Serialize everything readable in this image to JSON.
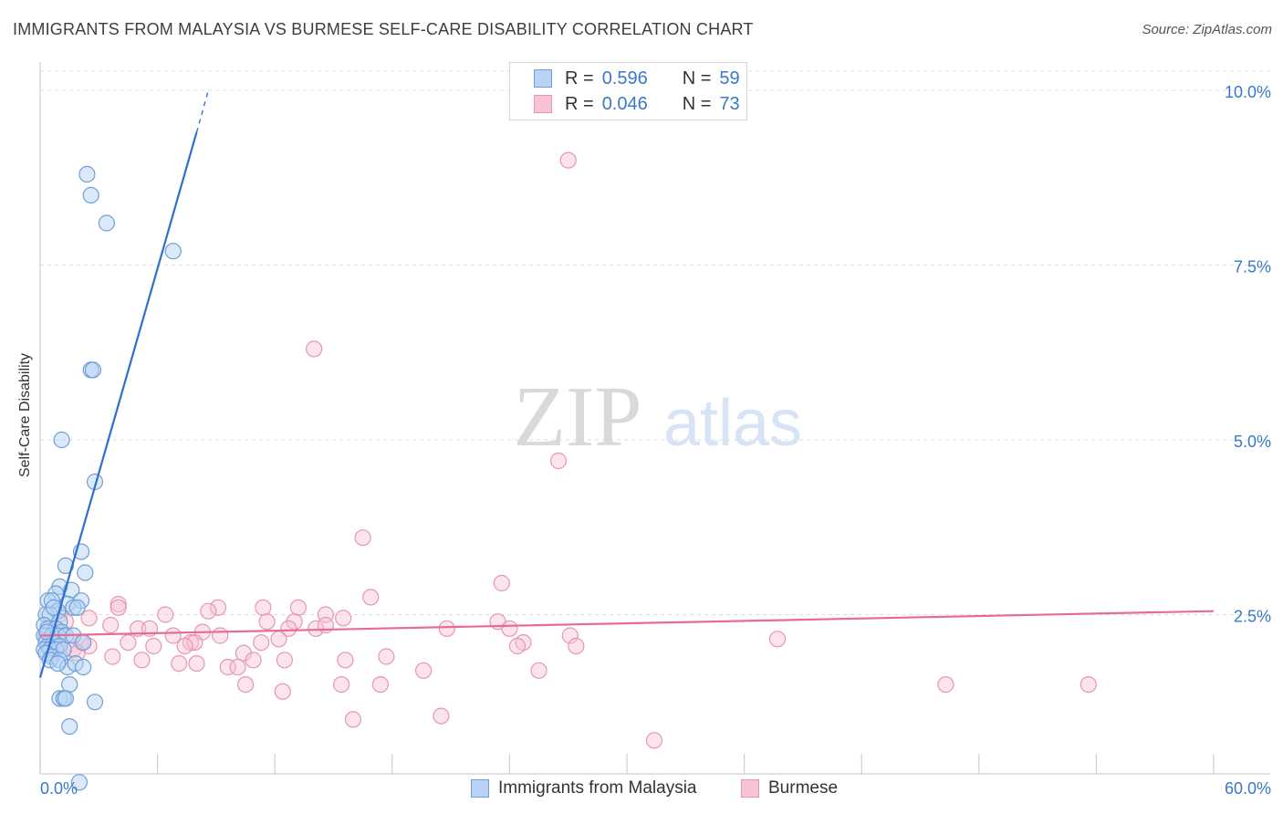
{
  "header": {
    "title": "IMMIGRANTS FROM MALAYSIA VS BURMESE SELF-CARE DISABILITY CORRELATION CHART",
    "source": "Source: ZipAtlas.com"
  },
  "watermark": {
    "zip": "ZIP",
    "atlas": "atlas"
  },
  "legend": {
    "r_label": "R =",
    "n_label": "N =",
    "series": [
      {
        "name": "Immigrants from Malaysia",
        "r": "0.596",
        "n": "59"
      },
      {
        "name": "Burmese",
        "r": "0.046",
        "n": "73"
      }
    ]
  },
  "colors": {
    "blue_fill": "#b8d3f3",
    "blue_stroke": "#6f9fd8",
    "blue_line": "#2f6fcf",
    "pink_fill": "#f8c4d3",
    "pink_stroke": "#e796b0",
    "pink_line": "#e86a95",
    "tick_label": "#3a78c9"
  },
  "chart_data": {
    "type": "scatter",
    "title": "IMMIGRANTS FROM MALAYSIA VS BURMESE SELF-CARE DISABILITY CORRELATION CHART",
    "xlabel": "",
    "ylabel": "Self-Care Disability",
    "xlim": [
      0,
      60
    ],
    "ylim": [
      0,
      10.5
    ],
    "x_tick_labels": [
      "0.0%",
      "60.0%"
    ],
    "y_ticks": [
      {
        "value": 2.5,
        "label": "2.5%"
      },
      {
        "value": 5.0,
        "label": "5.0%"
      },
      {
        "value": 7.5,
        "label": "7.5%"
      },
      {
        "value": 10.0,
        "label": "10.0%"
      }
    ],
    "series": [
      {
        "name": "Immigrants from Malaysia",
        "r": 0.596,
        "n": 59,
        "trend": {
          "x1": 0,
          "y1": 1.6,
          "x2": 8.0,
          "y2": 9.4,
          "dash_x2": 8.6,
          "dash_y2": 10.0
        },
        "points": [
          [
            2.4,
            8.8
          ],
          [
            2.6,
            8.5
          ],
          [
            3.4,
            8.1
          ],
          [
            6.8,
            7.7
          ],
          [
            2.6,
            6.0
          ],
          [
            2.7,
            6.0
          ],
          [
            1.1,
            5.0
          ],
          [
            2.8,
            4.4
          ],
          [
            2.1,
            3.4
          ],
          [
            2.3,
            3.1
          ],
          [
            1.3,
            3.2
          ],
          [
            1.0,
            2.9
          ],
          [
            1.6,
            2.85
          ],
          [
            0.8,
            2.8
          ],
          [
            2.1,
            2.7
          ],
          [
            0.4,
            2.7
          ],
          [
            0.6,
            2.7
          ],
          [
            1.4,
            2.65
          ],
          [
            1.7,
            2.6
          ],
          [
            0.9,
            2.55
          ],
          [
            0.3,
            2.5
          ],
          [
            0.5,
            2.5
          ],
          [
            1.0,
            2.4
          ],
          [
            0.2,
            2.35
          ],
          [
            0.4,
            2.3
          ],
          [
            0.8,
            2.3
          ],
          [
            1.1,
            2.25
          ],
          [
            0.2,
            2.2
          ],
          [
            0.6,
            2.2
          ],
          [
            0.9,
            2.2
          ],
          [
            1.3,
            2.2
          ],
          [
            1.7,
            2.2
          ],
          [
            0.3,
            2.1
          ],
          [
            0.7,
            2.1
          ],
          [
            0.4,
            2.05
          ],
          [
            1.0,
            2.05
          ],
          [
            2.2,
            2.1
          ],
          [
            0.2,
            2.0
          ],
          [
            0.5,
            2.0
          ],
          [
            0.8,
            2.0
          ],
          [
            1.2,
            2.0
          ],
          [
            0.3,
            1.95
          ],
          [
            0.6,
            1.9
          ],
          [
            0.5,
            1.85
          ],
          [
            1.0,
            1.85
          ],
          [
            1.4,
            1.75
          ],
          [
            1.8,
            1.8
          ],
          [
            2.2,
            1.75
          ],
          [
            0.9,
            1.8
          ],
          [
            1.5,
            1.5
          ],
          [
            1.0,
            1.3
          ],
          [
            1.2,
            1.3
          ],
          [
            1.3,
            1.3
          ],
          [
            2.8,
            1.25
          ],
          [
            1.5,
            0.9
          ],
          [
            2.0,
            0.1
          ],
          [
            0.7,
            2.6
          ],
          [
            1.9,
            2.6
          ],
          [
            0.35,
            2.25
          ]
        ]
      },
      {
        "name": "Burmese",
        "r": 0.046,
        "n": 73,
        "trend": {
          "x1": 0,
          "y1": 2.2,
          "x2": 60,
          "y2": 2.55
        },
        "points": [
          [
            27.0,
            9.0
          ],
          [
            14.0,
            6.3
          ],
          [
            26.5,
            4.7
          ],
          [
            16.5,
            3.6
          ],
          [
            23.6,
            2.95
          ],
          [
            16.9,
            2.75
          ],
          [
            4.0,
            2.65
          ],
          [
            9.1,
            2.6
          ],
          [
            11.4,
            2.6
          ],
          [
            13.2,
            2.6
          ],
          [
            4.0,
            2.6
          ],
          [
            8.6,
            2.55
          ],
          [
            6.4,
            2.5
          ],
          [
            14.6,
            2.5
          ],
          [
            15.5,
            2.45
          ],
          [
            11.6,
            2.4
          ],
          [
            13.0,
            2.4
          ],
          [
            23.4,
            2.4
          ],
          [
            2.5,
            2.45
          ],
          [
            3.6,
            2.35
          ],
          [
            5.0,
            2.3
          ],
          [
            12.7,
            2.3
          ],
          [
            14.1,
            2.3
          ],
          [
            14.6,
            2.35
          ],
          [
            20.8,
            2.3
          ],
          [
            24.0,
            2.3
          ],
          [
            5.6,
            2.3
          ],
          [
            8.3,
            2.25
          ],
          [
            9.2,
            2.2
          ],
          [
            6.8,
            2.2
          ],
          [
            12.2,
            2.15
          ],
          [
            27.1,
            2.2
          ],
          [
            37.7,
            2.15
          ],
          [
            4.5,
            2.1
          ],
          [
            7.7,
            2.1
          ],
          [
            7.9,
            2.1
          ],
          [
            11.3,
            2.1
          ],
          [
            24.7,
            2.1
          ],
          [
            2.1,
            2.1
          ],
          [
            2.5,
            2.05
          ],
          [
            5.8,
            2.05
          ],
          [
            7.4,
            2.05
          ],
          [
            27.4,
            2.05
          ],
          [
            24.4,
            2.05
          ],
          [
            10.4,
            1.95
          ],
          [
            1.7,
            2.0
          ],
          [
            1.9,
            1.95
          ],
          [
            3.7,
            1.9
          ],
          [
            5.2,
            1.85
          ],
          [
            10.9,
            1.85
          ],
          [
            12.5,
            1.85
          ],
          [
            17.7,
            1.9
          ],
          [
            7.1,
            1.8
          ],
          [
            8.0,
            1.8
          ],
          [
            9.6,
            1.75
          ],
          [
            10.1,
            1.75
          ],
          [
            15.6,
            1.85
          ],
          [
            19.6,
            1.7
          ],
          [
            25.5,
            1.7
          ],
          [
            15.4,
            1.5
          ],
          [
            10.5,
            1.5
          ],
          [
            17.4,
            1.5
          ],
          [
            12.4,
            1.4
          ],
          [
            46.3,
            1.5
          ],
          [
            53.6,
            1.5
          ],
          [
            20.5,
            1.05
          ],
          [
            16.0,
            1.0
          ],
          [
            31.4,
            0.7
          ],
          [
            0.5,
            2.3
          ],
          [
            1.0,
            2.5
          ],
          [
            1.3,
            2.4
          ],
          [
            0.3,
            2.2
          ],
          [
            0.9,
            2.05
          ]
        ]
      }
    ]
  }
}
